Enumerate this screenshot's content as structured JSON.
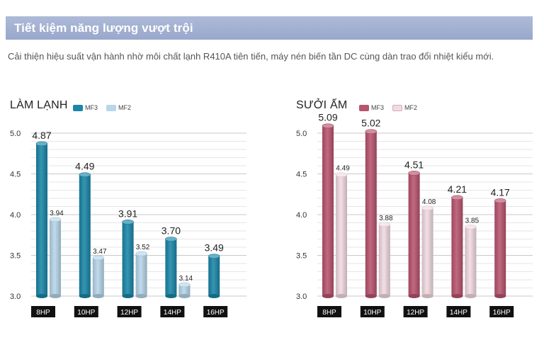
{
  "header": {
    "title": "Tiết kiệm năng lượng vượt trội",
    "description": "Cải thiện hiệu suất vận hành nhờ môi chất lạnh R410A tiên tiến, máy nén biến tần DC cùng dàn trao đổi nhiệt kiểu mới."
  },
  "colors": {
    "banner": "#a3b1d2",
    "mf3_cool": "#1a86a8",
    "mf2_cool": "#b7d6ea",
    "mf3_heat": "#b8546f",
    "mf2_heat": "#f1dbe1",
    "category_tag": "#111111"
  },
  "chart_data": [
    {
      "type": "bar",
      "title": "LÀM LẠNH",
      "categories": [
        "8HP",
        "10HP",
        "12HP",
        "14HP",
        "16HP"
      ],
      "series": [
        {
          "name": "MF3",
          "values": [
            4.87,
            4.49,
            3.91,
            3.7,
            3.49
          ]
        },
        {
          "name": "MF2",
          "values": [
            3.94,
            3.47,
            3.52,
            3.14,
            null
          ]
        }
      ],
      "data_labels": {
        "MF3": [
          "4.87",
          "4.49",
          "3.91",
          "3.70",
          "3.49"
        ],
        "MF2": [
          "3.94",
          "3.47",
          "3.52",
          "3.14",
          ""
        ]
      },
      "yticks": [
        "3.0",
        "3.5",
        "4.0",
        "4.5",
        "5.0"
      ],
      "ylim": [
        3.0,
        5.0
      ],
      "xlabel": "",
      "ylabel": ""
    },
    {
      "type": "bar",
      "title": "SƯỞI ẤM",
      "categories": [
        "8HP",
        "10HP",
        "12HP",
        "14HP",
        "16HP"
      ],
      "series": [
        {
          "name": "MF3",
          "values": [
            5.09,
            5.02,
            4.51,
            4.21,
            4.17
          ]
        },
        {
          "name": "MF2",
          "values": [
            4.49,
            3.88,
            4.08,
            3.85,
            null
          ]
        }
      ],
      "data_labels": {
        "MF3": [
          "5.09",
          "5.02",
          "4.51",
          "4.21",
          "4.17"
        ],
        "MF2": [
          "4.49",
          "3.88",
          "4.08",
          "3.85",
          ""
        ]
      },
      "yticks": [
        "3.0",
        "3.5",
        "4.0",
        "4.5",
        "5.0"
      ],
      "ylim": [
        3.0,
        5.0
      ],
      "xlabel": "",
      "ylabel": ""
    }
  ]
}
